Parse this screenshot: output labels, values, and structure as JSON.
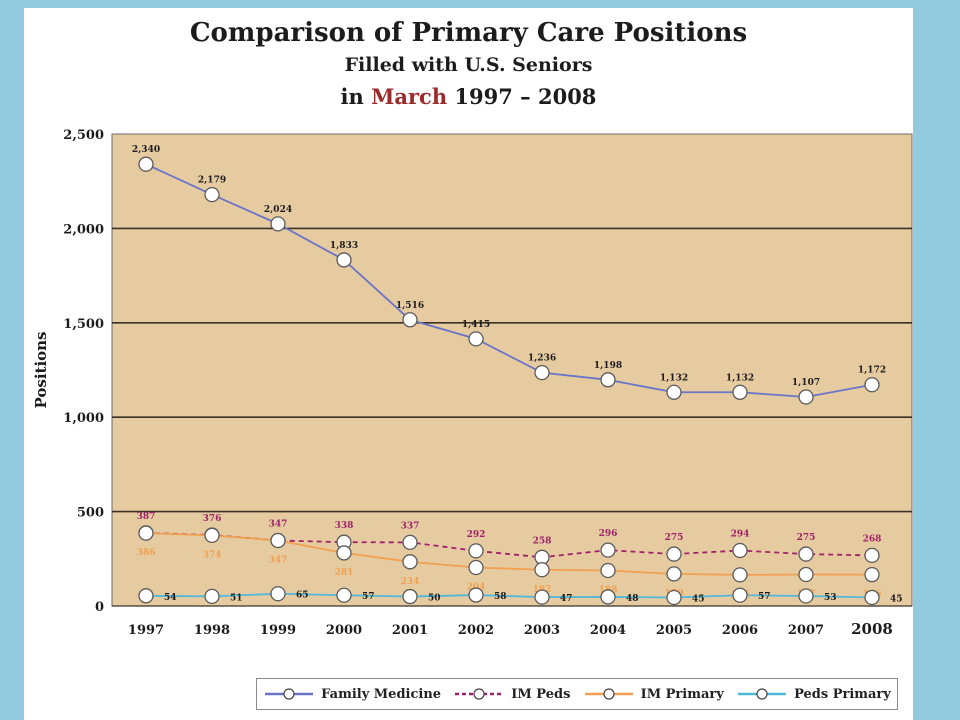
{
  "title": {
    "line1": "Comparison of Primary Care Positions",
    "line2": "Filled with U.S. Seniors",
    "line3_pre": "in",
    "line3_highlight": "March",
    "line3_post": "1997 – 2008"
  },
  "colors": {
    "background": "#92cbe0",
    "plot_bg": "#e6cba1",
    "family_medicine": "#6a74c8",
    "im_peds": "#a0226a",
    "im_primary": "#f0a050",
    "peds_primary": "#50b8d8"
  },
  "chart_data": {
    "type": "line",
    "title": "Comparison of Primary Care Positions Filled with U.S. Seniors in March 1997 – 2008",
    "xlabel": "",
    "ylabel": "Positions",
    "ylim": [
      0,
      2500
    ],
    "yticks": [
      0,
      500,
      1000,
      1500,
      2000,
      2500
    ],
    "ytick_labels": [
      "0",
      "500",
      "1,000",
      "1,500",
      "2,000",
      "2,500"
    ],
    "gridlines": [
      500,
      1000,
      1500,
      2000
    ],
    "x": [
      "1997",
      "1998",
      "1999",
      "2000",
      "2001",
      "2002",
      "2003",
      "2004",
      "2005",
      "2006",
      "2007",
      "2008"
    ],
    "legend_position": "bottom",
    "series": [
      {
        "name": "Family Medicine",
        "key": "family_medicine",
        "values": [
          2340,
          2179,
          2024,
          1833,
          1516,
          1415,
          1236,
          1198,
          1132,
          1132,
          1107,
          1172
        ],
        "labels": [
          "2,340",
          "2,179",
          "2,024",
          "1,833",
          "1,516",
          "1,415",
          "1,236",
          "1,198",
          "1,132",
          "1,132",
          "1,107",
          "1,172"
        ],
        "dashed": false
      },
      {
        "name": "IM Peds",
        "key": "im_peds",
        "values": [
          387,
          376,
          347,
          338,
          337,
          292,
          258,
          296,
          275,
          294,
          275,
          268
        ],
        "labels": [
          "387",
          "376",
          "347",
          "338",
          "337",
          "292",
          "258",
          "296",
          "275",
          "294",
          "275",
          "268"
        ],
        "dashed": true
      },
      {
        "name": "IM Primary",
        "key": "im_primary",
        "values": [
          386,
          374,
          347,
          281,
          234,
          204,
          192,
          188,
          170,
          165,
          167,
          166
        ],
        "labels": [
          "386",
          "374",
          "347",
          "281",
          "234",
          "204",
          "192",
          "188",
          "170",
          "165",
          "167",
          "166"
        ],
        "dashed": false
      },
      {
        "name": "Peds Primary",
        "key": "peds_primary",
        "values": [
          54,
          51,
          65,
          57,
          50,
          58,
          47,
          48,
          45,
          57,
          53,
          45
        ],
        "labels": [
          "54",
          "51",
          "65",
          "57",
          "50",
          "58",
          "47",
          "48",
          "45",
          "57",
          "53",
          "45"
        ],
        "dashed": false
      }
    ]
  }
}
